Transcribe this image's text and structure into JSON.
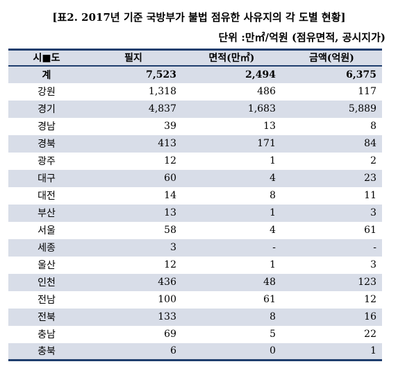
{
  "title": "[표2. 2017년 기준 국방부가 불법 점유한 사유지의 각 도별 현황]",
  "unit": "단위 :만㎡/억원 (점유면적, 공시지가)",
  "headers": [
    "시■도",
    "필지",
    "면적(만㎡)",
    "금액(억원)"
  ],
  "rows": [
    [
      "계",
      "7,523",
      "2,494",
      "6,375"
    ],
    [
      "강원",
      "1,318",
      "486",
      "117"
    ],
    [
      "경기",
      "4,837",
      "1,683",
      "5,889"
    ],
    [
      "경남",
      "39",
      "13",
      "8"
    ],
    [
      "경북",
      "413",
      "171",
      "84"
    ],
    [
      "광주",
      "12",
      "1",
      "2"
    ],
    [
      "대구",
      "60",
      "4",
      "23"
    ],
    [
      "대전",
      "14",
      "8",
      "11"
    ],
    [
      "부산",
      "13",
      "1",
      "3"
    ],
    [
      "서울",
      "58",
      "4",
      "61"
    ],
    [
      "세종",
      "3",
      "-",
      "-"
    ],
    [
      "울산",
      "12",
      "1",
      "3"
    ],
    [
      "인천",
      "436",
      "48",
      "123"
    ],
    [
      "전남",
      "100",
      "61",
      "12"
    ],
    [
      "전북",
      "133",
      "8",
      "16"
    ],
    [
      "충남",
      "69",
      "5",
      "22"
    ],
    [
      "충북",
      "6",
      "0",
      "1"
    ]
  ]
}
